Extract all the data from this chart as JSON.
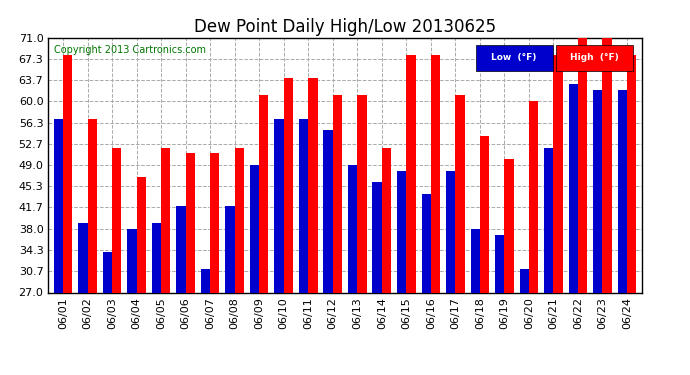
{
  "title": "Dew Point Daily High/Low 20130625",
  "copyright": "Copyright 2013 Cartronics.com",
  "dates": [
    "06/01",
    "06/02",
    "06/03",
    "06/04",
    "06/05",
    "06/06",
    "06/07",
    "06/08",
    "06/09",
    "06/10",
    "06/11",
    "06/12",
    "06/13",
    "06/14",
    "06/15",
    "06/16",
    "06/17",
    "06/18",
    "06/19",
    "06/20",
    "06/21",
    "06/22",
    "06/23",
    "06/24"
  ],
  "high": [
    68,
    57,
    52,
    47,
    52,
    51,
    51,
    52,
    61,
    64,
    64,
    61,
    61,
    52,
    68,
    68,
    61,
    54,
    50,
    60,
    68,
    71,
    71,
    68
  ],
  "low": [
    57,
    39,
    34,
    38,
    39,
    42,
    31,
    42,
    49,
    57,
    57,
    55,
    49,
    46,
    48,
    44,
    48,
    38,
    37,
    31,
    52,
    63,
    62,
    62
  ],
  "high_color": "#ff0000",
  "low_color": "#0000cc",
  "bg_color": "#ffffff",
  "plot_bg_color": "#ffffff",
  "grid_color": "#aaaaaa",
  "ylim": [
    27.0,
    71.0
  ],
  "yticks": [
    27.0,
    30.7,
    34.3,
    38.0,
    41.7,
    45.3,
    49.0,
    52.7,
    56.3,
    60.0,
    63.7,
    67.3,
    71.0
  ],
  "legend_low_label": "Low  (°F)",
  "legend_high_label": "High  (°F)",
  "bar_width": 0.38
}
